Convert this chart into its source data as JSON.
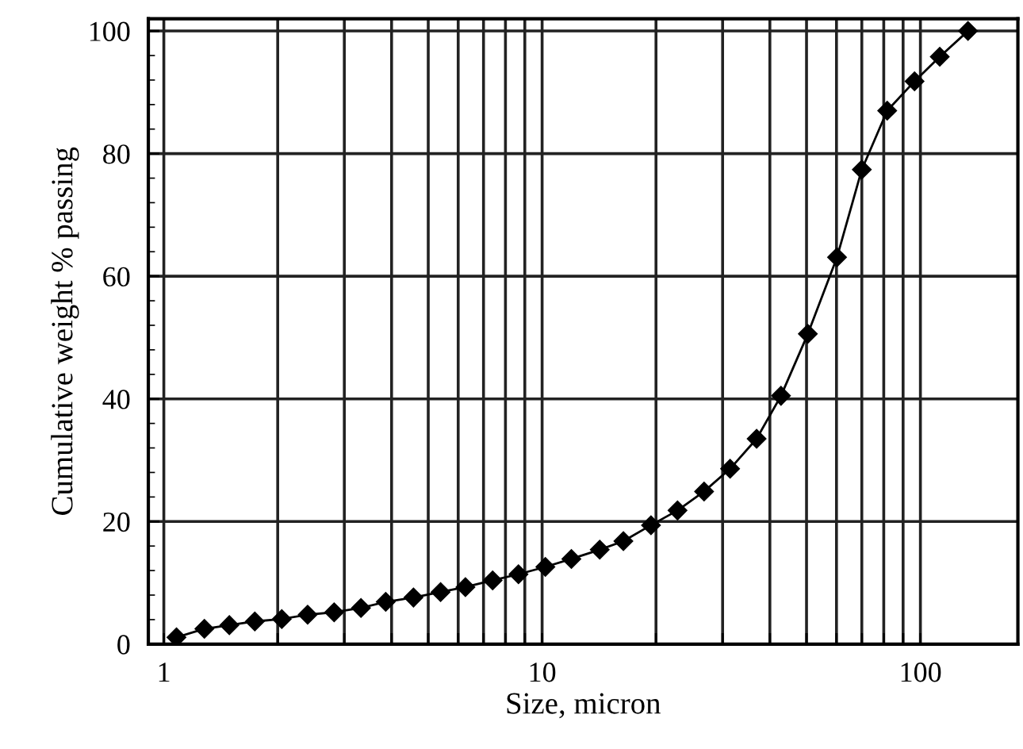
{
  "chart_data": {
    "type": "line",
    "xlabel": "Size, micron",
    "ylabel": "Cumulative weight % passing",
    "x": [
      1.08,
      1.28,
      1.49,
      1.74,
      2.05,
      2.4,
      2.82,
      3.32,
      3.86,
      4.57,
      5.39,
      6.27,
      7.4,
      8.66,
      10.2,
      11.95,
      14.2,
      16.4,
      19.4,
      22.8,
      26.8,
      31.4,
      36.9,
      42.8,
      50.4,
      60.2,
      70.0,
      81.7,
      96.5,
      112.5,
      133.6
    ],
    "series": [
      {
        "color": "#000000",
        "values": [
          1.1,
          2.5,
          3.1,
          3.7,
          4.1,
          4.8,
          5.2,
          5.9,
          6.9,
          7.6,
          8.5,
          9.3,
          10.4,
          11.4,
          12.6,
          13.9,
          15.4,
          16.8,
          19.4,
          21.8,
          24.9,
          28.6,
          33.5,
          40.5,
          50.6,
          63.1,
          77.4,
          87.0,
          91.8,
          95.8,
          100
        ]
      }
    ],
    "log": "x",
    "xlim": [
      0.91,
      181
    ],
    "ylim": [
      0,
      102
    ],
    "xticks": [
      1,
      {
        "value": 2,
        "label": null
      },
      {
        "value": 3,
        "label": null
      },
      {
        "value": 4,
        "label": null
      },
      {
        "value": 5,
        "label": null
      },
      {
        "value": 6,
        "label": null
      },
      {
        "value": 7,
        "label": null
      },
      {
        "value": 8,
        "label": null
      },
      {
        "value": 9,
        "label": null
      },
      10,
      {
        "value": 20,
        "label": null
      },
      {
        "value": 30,
        "label": null
      },
      {
        "value": 40,
        "label": null
      },
      {
        "value": 50,
        "label": null
      },
      {
        "value": 60,
        "label": null
      },
      {
        "value": 70,
        "label": null
      },
      {
        "value": 80,
        "label": null
      },
      {
        "value": 90,
        "label": null
      },
      100
    ],
    "yticks": [
      0,
      20,
      40,
      60,
      80,
      100
    ],
    "grid": true,
    "marker": "diamond",
    "line_style": "solid"
  }
}
